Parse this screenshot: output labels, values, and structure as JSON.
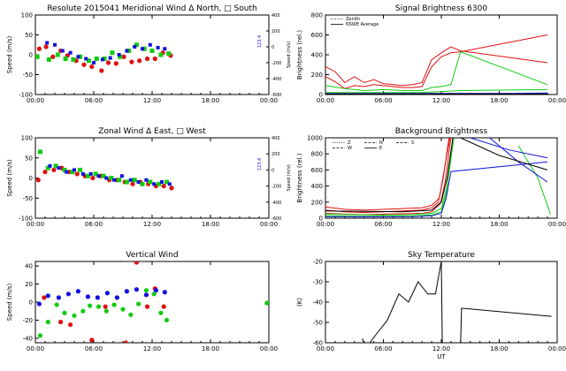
{
  "chart_data": [
    {
      "id": "meridional",
      "type": "scatter",
      "title": "Resolute  2015041    Meridional Wind   Δ North,  □ South",
      "ylabel": "Speed (m/s)",
      "ylabel_right": "Speed (m/s)",
      "ylim": [
        -100,
        100
      ],
      "yticks": [
        -100,
        -50,
        0,
        50,
        100
      ],
      "ylim_right": [
        -600,
        400
      ],
      "yticks_right": [
        "-600",
        "-400",
        "-200",
        "0",
        "200",
        "400"
      ],
      "xlim": [
        0,
        24
      ],
      "xticks": [
        "00:00",
        "06:00",
        "12:00",
        "18:00",
        "00:00"
      ],
      "right_annotation": "123.4",
      "series": [
        {
          "name": "red",
          "color": "#dd1111",
          "x": [
            0.4,
            1.1,
            1.8,
            2.6,
            3.3,
            4.2,
            5.0,
            5.8,
            6.8,
            7.5,
            8.3,
            9.1,
            9.9,
            10.7,
            11.5,
            12.3,
            13.1,
            13.9
          ],
          "y": [
            15,
            20,
            -5,
            10,
            -2,
            -15,
            -25,
            -30,
            -40,
            -20,
            -22,
            -5,
            -18,
            -15,
            -10,
            -10,
            5,
            -2
          ]
        },
        {
          "name": "green",
          "color": "#11cc11",
          "x": [
            0.2,
            1.4,
            2.3,
            3.1,
            3.9,
            4.6,
            5.5,
            6.3,
            7.1,
            7.9,
            8.7,
            9.6,
            10.4,
            11.2,
            12.0,
            12.9,
            13.7
          ],
          "y": [
            -5,
            -12,
            0,
            -10,
            -12,
            -5,
            -15,
            -10,
            -10,
            5,
            -5,
            10,
            25,
            15,
            10,
            0,
            3
          ]
        },
        {
          "name": "blue",
          "color": "#1111dd",
          "x": [
            1.2,
            2.0,
            2.8,
            3.6,
            4.4,
            5.2,
            6.0,
            6.9,
            7.7,
            8.6,
            9.4,
            10.2,
            11.0,
            11.8,
            12.6,
            13.3
          ],
          "y": [
            30,
            25,
            10,
            5,
            -5,
            -10,
            -20,
            -12,
            -8,
            0,
            10,
            20,
            15,
            25,
            18,
            15
          ]
        }
      ]
    },
    {
      "id": "signal",
      "type": "line",
      "title": "Signal Brightness        6300",
      "ylabel": "Brightness (rel.)",
      "ylim": [
        0,
        800
      ],
      "yticks": [
        0,
        200,
        400,
        600,
        800
      ],
      "xlim": [
        0,
        24
      ],
      "xticks": [
        "00:00",
        "06:00",
        "12:00",
        "18:00",
        "00:00"
      ],
      "legend": [
        "Zenith",
        "NSWE Average"
      ],
      "series": [
        {
          "name": "red-1",
          "color": "#dd1111",
          "x": [
            0,
            1,
            2,
            3,
            4,
            5,
            6,
            7,
            8,
            9,
            10,
            11,
            12,
            13,
            14,
            23
          ],
          "y": [
            280,
            230,
            120,
            180,
            120,
            150,
            110,
            100,
            90,
            100,
            120,
            350,
            420,
            480,
            440,
            320
          ]
        },
        {
          "name": "red-2",
          "color": "#dd1111",
          "x": [
            0,
            1,
            2,
            3,
            4,
            5,
            6,
            7,
            8,
            9,
            10,
            11,
            12,
            13,
            14,
            23
          ],
          "y": [
            180,
            130,
            60,
            90,
            80,
            100,
            90,
            80,
            70,
            70,
            80,
            280,
            380,
            420,
            430,
            600
          ]
        },
        {
          "name": "green-1",
          "color": "#11cc11",
          "x": [
            0,
            2,
            4,
            6,
            8,
            10,
            11,
            12,
            13,
            14,
            23
          ],
          "y": [
            90,
            60,
            40,
            50,
            40,
            40,
            70,
            80,
            100,
            430,
            100
          ]
        },
        {
          "name": "green-2",
          "color": "#11cc11",
          "x": [
            0,
            2,
            4,
            6,
            8,
            10,
            12,
            14,
            23
          ],
          "y": [
            20,
            20,
            20,
            20,
            20,
            20,
            30,
            40,
            50
          ]
        },
        {
          "name": "blue-1",
          "color": "#1111dd",
          "x": [
            0,
            4,
            8,
            12,
            16,
            20,
            23
          ],
          "y": [
            10,
            10,
            10,
            12,
            12,
            12,
            15
          ]
        },
        {
          "name": "black-zenith",
          "color": "#000000",
          "x": [
            0,
            4,
            8,
            12,
            16,
            20,
            23
          ],
          "y": [
            5,
            5,
            5,
            5,
            5,
            5,
            5
          ]
        }
      ]
    },
    {
      "id": "zonal",
      "type": "scatter",
      "title": "Zonal Wind      Δ East,  □ West",
      "ylabel": "Speed (m/s)",
      "ylabel_right": "Speed (m/s)",
      "ylim": [
        -100,
        100
      ],
      "yticks": [
        -100,
        -50,
        0,
        50,
        100
      ],
      "ylim_right": [
        -600,
        400
      ],
      "yticks_right": [
        "-600",
        "-400",
        "-200",
        "0",
        "200",
        "400"
      ],
      "xlim": [
        0,
        24
      ],
      "xticks": [
        "00:00",
        "06:00",
        "12:00",
        "18:00",
        "00:00"
      ],
      "right_annotation": "123.4",
      "series": [
        {
          "name": "red",
          "color": "#dd1111",
          "x": [
            0.3,
            1.0,
            1.9,
            2.7,
            3.5,
            4.3,
            5.1,
            5.9,
            6.7,
            7.6,
            8.4,
            9.2,
            10.0,
            10.8,
            11.6,
            12.4,
            13.2,
            14.0
          ],
          "y": [
            -5,
            15,
            20,
            25,
            15,
            10,
            5,
            0,
            5,
            -5,
            -5,
            -10,
            -15,
            -10,
            -15,
            -20,
            -20,
            -25
          ]
        },
        {
          "name": "green",
          "color": "#11cc11",
          "x": [
            0.5,
            1.3,
            2.1,
            3.0,
            3.8,
            4.6,
            5.4,
            6.2,
            7.0,
            7.8,
            8.6,
            9.4,
            10.2,
            11.0,
            11.8,
            12.7,
            13.5
          ],
          "y": [
            65,
            25,
            30,
            20,
            15,
            20,
            5,
            10,
            5,
            0,
            -5,
            -10,
            -5,
            -15,
            -10,
            -15,
            -10
          ]
        },
        {
          "name": "blue",
          "color": "#1111dd",
          "x": [
            1.5,
            2.4,
            3.2,
            4.0,
            4.9,
            5.7,
            6.5,
            7.3,
            8.1,
            8.9,
            9.8,
            10.6,
            11.4,
            12.2,
            13.0,
            13.8
          ],
          "y": [
            30,
            25,
            15,
            20,
            10,
            10,
            5,
            0,
            -5,
            5,
            -5,
            -10,
            -5,
            -15,
            -10,
            -15
          ]
        }
      ]
    },
    {
      "id": "background",
      "type": "line",
      "title": "Background Brightness",
      "ylabel": "Brightness (rel.)",
      "ylim": [
        0,
        1000
      ],
      "yticks": [
        0,
        200,
        400,
        600,
        800,
        1000
      ],
      "xlim": [
        0,
        24
      ],
      "xticks": [
        "00:00",
        "06:00",
        "12:00",
        "18:00",
        "00:00"
      ],
      "legend": [
        "Z",
        "N",
        "S",
        "W",
        "E"
      ],
      "series": [
        {
          "name": "red-1",
          "color": "#dd1111",
          "x": [
            0,
            2,
            4,
            6,
            8,
            10,
            11,
            11.7,
            12.2,
            12.8
          ],
          "y": [
            100,
            80,
            70,
            80,
            90,
            100,
            130,
            200,
            500,
            1000
          ]
        },
        {
          "name": "red-2",
          "color": "#dd1111",
          "x": [
            0,
            2,
            4,
            6,
            8,
            10,
            11,
            11.8,
            12.3,
            12.9
          ],
          "y": [
            140,
            110,
            100,
            110,
            120,
            130,
            160,
            250,
            600,
            1000
          ]
        },
        {
          "name": "red-3",
          "color": "#dd1111",
          "x": [
            0,
            2,
            4,
            6,
            8,
            10,
            11,
            11.9,
            12.4,
            13.0
          ],
          "y": [
            60,
            50,
            45,
            50,
            55,
            60,
            80,
            180,
            450,
            1000
          ]
        },
        {
          "name": "green-1",
          "color": "#11cc11",
          "x": [
            0,
            3,
            6,
            9,
            11,
            12,
            12.5,
            13.2
          ],
          "y": [
            30,
            25,
            25,
            28,
            40,
            80,
            300,
            1000
          ]
        },
        {
          "name": "green-2",
          "color": "#11cc11",
          "x": [
            0,
            3,
            6,
            9,
            11,
            12,
            12.6,
            13.3
          ],
          "y": [
            50,
            45,
            40,
            45,
            60,
            120,
            400,
            1000
          ]
        },
        {
          "name": "green-3",
          "color": "#11cc11",
          "x": [
            20,
            22,
            23.3
          ],
          "y": [
            900,
            500,
            50
          ]
        },
        {
          "name": "blue-1",
          "color": "#1111dd",
          "x": [
            0,
            3,
            6,
            9,
            11,
            12,
            12.5,
            13,
            23
          ],
          "y": [
            20,
            18,
            18,
            20,
            30,
            60,
            250,
            580,
            700
          ]
        },
        {
          "name": "blue-2",
          "color": "#1111dd",
          "x": [
            15,
            19,
            23
          ],
          "y": [
            1000,
            850,
            750
          ]
        },
        {
          "name": "blue-3",
          "color": "#1111dd",
          "x": [
            17,
            20,
            23
          ],
          "y": [
            1000,
            700,
            450
          ]
        },
        {
          "name": "black-1",
          "color": "#000000",
          "x": [
            0,
            4,
            8,
            11,
            12,
            12.6,
            13.2
          ],
          "y": [
            90,
            85,
            80,
            100,
            200,
            500,
            1000
          ]
        },
        {
          "name": "black-2",
          "color": "#000000",
          "x": [
            14,
            18,
            23
          ],
          "y": [
            1000,
            780,
            600
          ]
        }
      ]
    },
    {
      "id": "vertical",
      "type": "scatter",
      "title": "Vertical Wind",
      "ylabel": "Speed (m/s)",
      "ylim": [
        -45,
        45
      ],
      "yticks": [
        -40,
        -20,
        0,
        20,
        40
      ],
      "xlim": [
        0,
        24
      ],
      "xticks": [
        "00:00",
        "06:00",
        "12:00",
        "18:00",
        "00:00"
      ],
      "series": [
        {
          "name": "red",
          "color": "#dd1111",
          "x": [
            0.9,
            2.6,
            3.6,
            5.8,
            7.2,
            9.3,
            10.4,
            11.5,
            12.3,
            13.2
          ],
          "y": [
            5,
            -22,
            -25,
            -42,
            -5,
            -45,
            44,
            -5,
            15,
            -5
          ]
        },
        {
          "name": "green",
          "color": "#11cc11",
          "x": [
            0.5,
            1.3,
            2.2,
            3.0,
            4.0,
            4.9,
            5.6,
            6.5,
            7.3,
            8.1,
            9.0,
            9.8,
            10.6,
            11.4,
            12.2,
            12.9,
            13.5,
            23.8
          ],
          "y": [
            -37,
            -22,
            -3,
            -12,
            -15,
            -10,
            -4,
            -5,
            -10,
            -3,
            -8,
            -14,
            -2,
            13,
            9,
            -12,
            -20,
            -1
          ]
        },
        {
          "name": "blue",
          "color": "#1111dd",
          "x": [
            0.4,
            1.3,
            2.4,
            3.4,
            4.4,
            5.4,
            6.4,
            7.4,
            8.4,
            9.4,
            10.4,
            11.4,
            12.4,
            13.3
          ],
          "y": [
            -2,
            7,
            5,
            9,
            12,
            6,
            5,
            10,
            5,
            12,
            14,
            8,
            13,
            11
          ]
        }
      ]
    },
    {
      "id": "skytemp",
      "type": "line",
      "title": "Sky Temperature",
      "ylabel": "(K)",
      "ylim": [
        -60,
        -20
      ],
      "yticks": [
        -60,
        -50,
        -40,
        -30,
        -20
      ],
      "xlim": [
        0,
        24
      ],
      "xticks": [
        "00:00",
        "06:00",
        "12:00",
        "18:00",
        "00:00"
      ],
      "xlabel": "UT",
      "series": [
        {
          "name": "sky-1",
          "color": "#000000",
          "x": [
            3.8,
            4.0
          ],
          "y": [
            -58,
            -60
          ]
        },
        {
          "name": "sky-2",
          "color": "#000000",
          "x": [
            4.6,
            5.4,
            6.4,
            7.6,
            8.6,
            9.6,
            10.6,
            11.4,
            12.0,
            12.1
          ],
          "y": [
            -60,
            -55,
            -49,
            -36,
            -40,
            -30,
            -36,
            -36,
            -20,
            -60
          ]
        },
        {
          "name": "sky-3",
          "color": "#000000",
          "x": [
            14.0,
            14.1,
            23.4
          ],
          "y": [
            -60,
            -43,
            -47
          ]
        }
      ]
    }
  ],
  "shared": {
    "xlabel": "UT"
  }
}
